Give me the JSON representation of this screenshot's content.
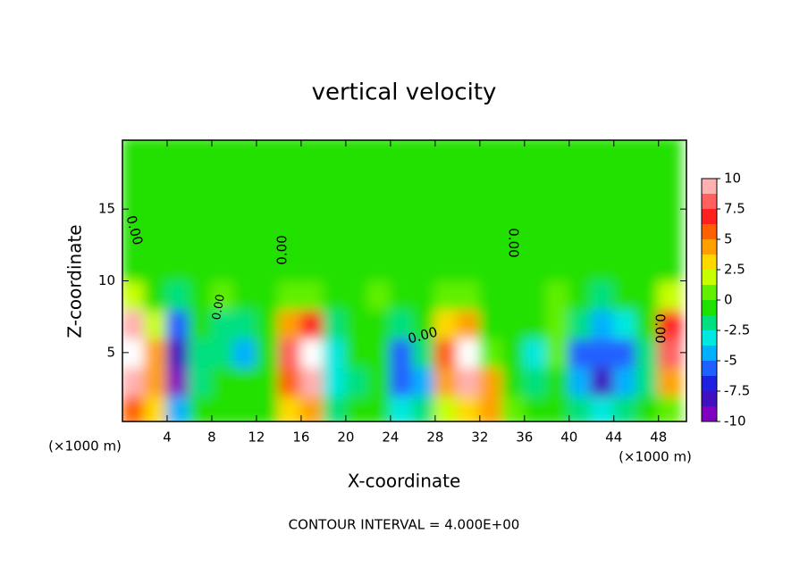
{
  "chart_data": {
    "type": "heatmap",
    "title": "vertical velocity",
    "x_label": "X-coordinate",
    "y_label": "Z-coordinate",
    "unit_labels": [
      "(×1000 m)",
      "(×1000 m)"
    ],
    "footer": "CONTOUR INTERVAL = 4.000E+00",
    "contour_labels": [
      "0.00",
      "0.00",
      "0.00",
      "0.00",
      "0.00",
      "0.00"
    ],
    "xlim": [
      0,
      50.5
    ],
    "ylim": [
      0.2,
      19.8
    ],
    "xticks": [
      4,
      8,
      12,
      16,
      20,
      24,
      28,
      32,
      36,
      40,
      44,
      48
    ],
    "yticks": [
      5,
      10,
      15
    ],
    "x": [
      1,
      3,
      5,
      7,
      9,
      11,
      13,
      15,
      17,
      19,
      21,
      23,
      25,
      27,
      29,
      31,
      33,
      35,
      37,
      39,
      41,
      43,
      45,
      47,
      49
    ],
    "z": [
      1,
      3,
      5,
      7,
      9,
      11,
      13,
      15,
      17,
      19
    ],
    "values": [
      [
        6,
        3,
        -4,
        -1,
        0,
        -1,
        0,
        3,
        4,
        -2,
        -1,
        0,
        -3,
        -2,
        2,
        3,
        5,
        1,
        -1,
        0,
        -2,
        -3,
        -2,
        -1,
        1
      ],
      [
        10,
        5,
        -9,
        -2,
        -1,
        -1,
        0,
        6,
        9,
        -3,
        -2,
        0,
        -6,
        -4,
        4,
        9,
        4,
        0,
        -2,
        0,
        -4,
        -8,
        -4,
        -2,
        4
      ],
      [
        12,
        4,
        -8,
        -2,
        -2,
        -4,
        -1,
        8,
        12,
        -3,
        -1,
        0,
        -5,
        -2,
        6,
        11,
        1,
        -1,
        -3,
        1,
        -5,
        -6,
        -5,
        -2,
        8
      ],
      [
        9,
        2,
        -6,
        -1,
        -2,
        -2,
        0,
        5,
        7,
        -2,
        0,
        0,
        -2,
        -1,
        3,
        5,
        0,
        0,
        -1,
        1,
        -2,
        -4,
        -3,
        -1,
        7
      ],
      [
        2,
        0,
        -2,
        -1,
        1,
        -1,
        0,
        1,
        1,
        -1,
        0,
        1,
        0,
        0,
        1,
        1,
        0,
        0,
        0,
        1,
        -1,
        -2,
        -1,
        -1,
        2
      ],
      [
        0,
        -1,
        -1,
        -1,
        -1,
        -1,
        0,
        0,
        0,
        -1,
        0,
        0,
        0,
        0,
        0,
        0,
        0,
        -1,
        -1,
        -1,
        -1,
        -1,
        -1,
        -1,
        0
      ],
      [
        0,
        0,
        -1,
        -1,
        -1,
        0,
        0,
        0,
        0,
        0,
        0,
        0,
        0,
        0,
        0,
        0,
        0,
        0,
        -1,
        -1,
        0,
        -1,
        -1,
        0,
        0
      ],
      [
        0,
        0,
        0,
        -1,
        0,
        0,
        0,
        0,
        0,
        0,
        0,
        0,
        0,
        0,
        0,
        0,
        0,
        0,
        0,
        -1,
        0,
        0,
        0,
        0,
        0
      ],
      [
        0,
        0,
        0,
        0,
        0,
        0,
        0,
        0,
        0,
        0,
        0,
        0,
        0,
        0,
        0,
        0,
        0,
        0,
        0,
        0,
        0,
        0,
        0,
        0,
        0
      ],
      [
        0,
        0,
        0,
        0,
        0,
        0,
        0,
        0,
        0,
        0,
        0,
        0,
        0,
        0,
        0,
        0,
        0,
        0,
        0,
        0,
        0,
        0,
        0,
        0,
        0
      ]
    ],
    "colorbar": {
      "levels": [
        -10,
        -8.75,
        -7.5,
        -6.25,
        -5,
        -3.75,
        -2.5,
        -1.25,
        0,
        1.25,
        2.5,
        3.75,
        5,
        6.25,
        7.5,
        8.75,
        10
      ],
      "colors": [
        "#8000c0",
        "#4010c0",
        "#2020e0",
        "#2060ff",
        "#00b0ff",
        "#00e8e0",
        "#00e080",
        "#20e000",
        "#60f000",
        "#c8ff00",
        "#ffd800",
        "#ffa000",
        "#ff6000",
        "#ff2020",
        "#ff6060",
        "#ffb0b0"
      ],
      "ticks": [
        10,
        7.5,
        5,
        2.5,
        0,
        -2.5,
        -5,
        -7.5,
        -10
      ]
    }
  }
}
